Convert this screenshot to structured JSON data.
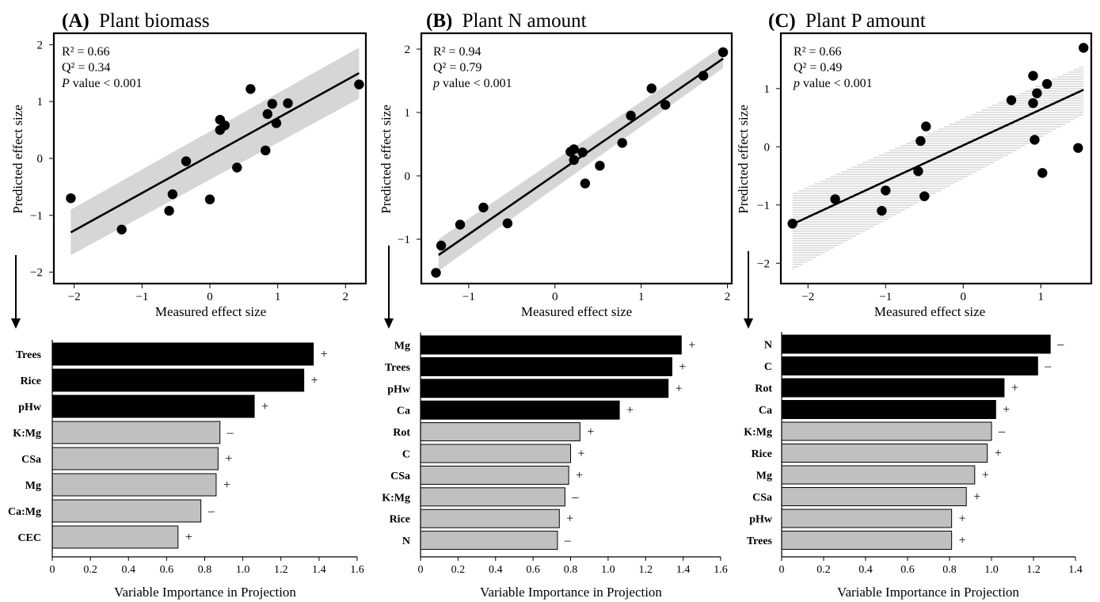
{
  "chart_data": [
    {
      "type": "scatter",
      "panel_label": "(A)",
      "title": "Plant biomass",
      "xlabel": "Measured effect size",
      "ylabel": "Predicted effect size",
      "xlim": [
        -2.3,
        2.3
      ],
      "ylim": [
        -2.2,
        2.2
      ],
      "xticks": [
        -2,
        -1,
        0,
        1,
        2
      ],
      "yticks": [
        -2,
        -1,
        0,
        1,
        2
      ],
      "stats": {
        "r2": "R² = 0.66",
        "q2": "Q² = 0.34",
        "p_italic": "P",
        "p_rest": " value < 0.001"
      },
      "band_style": "solid",
      "fit": {
        "x": [
          -2.05,
          2.2
        ],
        "y": [
          -1.3,
          1.5
        ],
        "ci_low": [
          -1.7,
          1.05
        ],
        "ci_high": [
          -0.9,
          1.95
        ]
      },
      "points": [
        {
          "x": -2.05,
          "y": -0.7
        },
        {
          "x": -1.3,
          "y": -1.25
        },
        {
          "x": -0.6,
          "y": -0.92
        },
        {
          "x": -0.55,
          "y": -0.63
        },
        {
          "x": -0.35,
          "y": -0.05
        },
        {
          "x": 0.0,
          "y": -0.72
        },
        {
          "x": 0.15,
          "y": 0.5
        },
        {
          "x": 0.15,
          "y": 0.68
        },
        {
          "x": 0.22,
          "y": 0.58
        },
        {
          "x": 0.4,
          "y": -0.16
        },
        {
          "x": 0.6,
          "y": 1.22
        },
        {
          "x": 0.82,
          "y": 0.14
        },
        {
          "x": 0.85,
          "y": 0.78
        },
        {
          "x": 0.92,
          "y": 0.96
        },
        {
          "x": 0.98,
          "y": 0.62
        },
        {
          "x": 1.15,
          "y": 0.97
        },
        {
          "x": 2.2,
          "y": 1.3
        }
      ]
    },
    {
      "type": "scatter",
      "panel_label": "(B)",
      "title": "Plant N amount",
      "xlabel": "Measured effect size",
      "ylabel": "Predicted effect size",
      "xlim": [
        -1.55,
        2.05
      ],
      "ylim": [
        -1.7,
        2.25
      ],
      "xticks": [
        -1,
        0,
        1,
        2
      ],
      "yticks": [
        -1,
        0,
        1,
        2
      ],
      "stats": {
        "r2": "R² = 0.94",
        "q2": "Q² = 0.79",
        "p_italic": "p",
        "p_rest": " value < 0.001"
      },
      "band_style": "solid",
      "fit": {
        "x": [
          -1.35,
          1.95
        ],
        "y": [
          -1.25,
          1.85
        ],
        "ci_low": [
          -1.5,
          1.7
        ],
        "ci_high": [
          -1.0,
          2.05
        ]
      },
      "points": [
        {
          "x": -1.38,
          "y": -1.53
        },
        {
          "x": -1.32,
          "y": -1.1
        },
        {
          "x": -1.1,
          "y": -0.77
        },
        {
          "x": -0.83,
          "y": -0.5
        },
        {
          "x": -0.55,
          "y": -0.75
        },
        {
          "x": 0.18,
          "y": 0.38
        },
        {
          "x": 0.22,
          "y": 0.42
        },
        {
          "x": 0.22,
          "y": 0.25
        },
        {
          "x": 0.32,
          "y": 0.37
        },
        {
          "x": 0.35,
          "y": -0.12
        },
        {
          "x": 0.52,
          "y": 0.16
        },
        {
          "x": 0.78,
          "y": 0.52
        },
        {
          "x": 0.88,
          "y": 0.95
        },
        {
          "x": 1.12,
          "y": 1.38
        },
        {
          "x": 1.28,
          "y": 1.12
        },
        {
          "x": 1.72,
          "y": 1.58
        },
        {
          "x": 1.95,
          "y": 1.95
        }
      ]
    },
    {
      "type": "scatter",
      "panel_label": "(C)",
      "title": "Plant P amount",
      "xlabel": "Measured effect size",
      "ylabel": "Predicted effect size",
      "xlim": [
        -2.35,
        1.65
      ],
      "ylim": [
        -2.35,
        1.95
      ],
      "xticks": [
        -2,
        -1,
        0,
        1
      ],
      "yticks": [
        -2,
        -1,
        0,
        1
      ],
      "stats": {
        "r2": "R² = 0.66",
        "q2": "Q² = 0.49",
        "p_italic": "p",
        "p_rest": " value < 0.001"
      },
      "band_style": "hatched",
      "fit": {
        "x": [
          -2.2,
          1.55
        ],
        "y": [
          -1.33,
          0.98
        ],
        "ci_low": [
          -2.12,
          0.55
        ],
        "ci_high": [
          -0.8,
          1.4
        ]
      },
      "points": [
        {
          "x": -2.2,
          "y": -1.32
        },
        {
          "x": -1.65,
          "y": -0.9
        },
        {
          "x": -1.05,
          "y": -1.1
        },
        {
          "x": -1.0,
          "y": -0.75
        },
        {
          "x": -0.58,
          "y": -0.42
        },
        {
          "x": -0.55,
          "y": 0.1
        },
        {
          "x": -0.5,
          "y": -0.85
        },
        {
          "x": -0.48,
          "y": 0.35
        },
        {
          "x": 0.62,
          "y": 0.8
        },
        {
          "x": 0.9,
          "y": 1.22
        },
        {
          "x": 0.9,
          "y": 0.75
        },
        {
          "x": 0.92,
          "y": 0.12
        },
        {
          "x": 0.95,
          "y": 0.92
        },
        {
          "x": 1.02,
          "y": -0.45
        },
        {
          "x": 1.08,
          "y": 1.08
        },
        {
          "x": 1.48,
          "y": -0.02
        },
        {
          "x": 1.55,
          "y": 1.7
        }
      ]
    },
    {
      "type": "bar",
      "orientation": "horizontal",
      "xlabel": "Variable Importance in Projection",
      "xlim": [
        0,
        1.6
      ],
      "xticks": [
        "0",
        "0.2",
        "0.4",
        "0.6",
        "0.8",
        "1.0",
        "1.2",
        "1.4",
        "1.6"
      ],
      "colors": {
        "important": "#000000",
        "other": "#c0c0c0"
      },
      "bars": [
        {
          "label": "Trees",
          "value": 1.37,
          "sign": "+",
          "important": true
        },
        {
          "label": "Rice",
          "value": 1.32,
          "sign": "+",
          "important": true
        },
        {
          "label": "pHw",
          "value": 1.06,
          "sign": "+",
          "important": true
        },
        {
          "label": "K:Mg",
          "value": 0.88,
          "sign": "–",
          "important": false
        },
        {
          "label": "CSa",
          "value": 0.87,
          "sign": "+",
          "important": false
        },
        {
          "label": "Mg",
          "value": 0.86,
          "sign": "+",
          "important": false
        },
        {
          "label": "Ca:Mg",
          "value": 0.78,
          "sign": "–",
          "important": false
        },
        {
          "label": "CEC",
          "value": 0.66,
          "sign": "+",
          "important": false
        }
      ]
    },
    {
      "type": "bar",
      "orientation": "horizontal",
      "xlabel": "Variable Importance in Projection",
      "xlim": [
        0,
        1.6
      ],
      "xticks": [
        "0",
        "0.2",
        "0.4",
        "0.6",
        "0.8",
        "1.0",
        "1.2",
        "1.4",
        "1.6"
      ],
      "colors": {
        "important": "#000000",
        "other": "#c0c0c0"
      },
      "bars": [
        {
          "label": "Mg",
          "value": 1.39,
          "sign": "+",
          "important": true
        },
        {
          "label": "Trees",
          "value": 1.34,
          "sign": "+",
          "important": true
        },
        {
          "label": "pHw",
          "value": 1.32,
          "sign": "+",
          "important": true
        },
        {
          "label": "Ca",
          "value": 1.06,
          "sign": "+",
          "important": true
        },
        {
          "label": "Rot",
          "value": 0.85,
          "sign": "+",
          "important": false
        },
        {
          "label": "C",
          "value": 0.8,
          "sign": "+",
          "important": false
        },
        {
          "label": "CSa",
          "value": 0.79,
          "sign": "+",
          "important": false
        },
        {
          "label": "K:Mg",
          "value": 0.77,
          "sign": "–",
          "important": false
        },
        {
          "label": "Rice",
          "value": 0.74,
          "sign": "+",
          "important": false
        },
        {
          "label": "N",
          "value": 0.73,
          "sign": "–",
          "important": false
        }
      ]
    },
    {
      "type": "bar",
      "orientation": "horizontal",
      "xlabel": "Variable Importance in Projection",
      "xlim": [
        0,
        1.4
      ],
      "xticks": [
        "0",
        "0.2",
        "0.4",
        "0.6",
        "0.8",
        "1.0",
        "1.2",
        "1.4"
      ],
      "colors": {
        "important": "#000000",
        "other": "#c0c0c0"
      },
      "bars": [
        {
          "label": "N",
          "value": 1.28,
          "sign": "–",
          "important": true
        },
        {
          "label": "C",
          "value": 1.22,
          "sign": "–",
          "important": true
        },
        {
          "label": "Rot",
          "value": 1.06,
          "sign": "+",
          "important": true
        },
        {
          "label": "Ca",
          "value": 1.02,
          "sign": "+",
          "important": true
        },
        {
          "label": "K:Mg",
          "value": 1.0,
          "sign": "–",
          "important": false
        },
        {
          "label": "Rice",
          "value": 0.98,
          "sign": "+",
          "important": false
        },
        {
          "label": "Mg",
          "value": 0.92,
          "sign": "+",
          "important": false
        },
        {
          "label": "CSa",
          "value": 0.88,
          "sign": "+",
          "important": false
        },
        {
          "label": "pHw",
          "value": 0.81,
          "sign": "+",
          "important": false
        },
        {
          "label": "Trees",
          "value": 0.81,
          "sign": "+",
          "important": false
        }
      ]
    }
  ]
}
